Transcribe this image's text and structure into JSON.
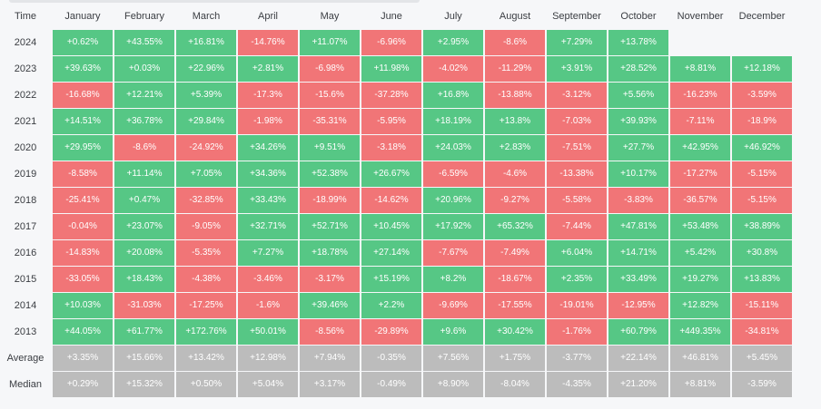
{
  "header": {
    "time_label": "Time",
    "months": [
      "January",
      "February",
      "March",
      "April",
      "May",
      "June",
      "July",
      "August",
      "September",
      "October",
      "November",
      "December"
    ]
  },
  "colors": {
    "positive": "#56c785",
    "negative": "#f17577",
    "summary": "#bcbcbc"
  },
  "rows": [
    {
      "label": "2024",
      "values": [
        "+0.62%",
        "+43.55%",
        "+16.81%",
        "-14.76%",
        "+11.07%",
        "-6.96%",
        "+2.95%",
        "-8.6%",
        "+7.29%",
        "+13.78%",
        "",
        ""
      ]
    },
    {
      "label": "2023",
      "values": [
        "+39.63%",
        "+0.03%",
        "+22.96%",
        "+2.81%",
        "-6.98%",
        "+11.98%",
        "-4.02%",
        "-11.29%",
        "+3.91%",
        "+28.52%",
        "+8.81%",
        "+12.18%"
      ]
    },
    {
      "label": "2022",
      "values": [
        "-16.68%",
        "+12.21%",
        "+5.39%",
        "-17.3%",
        "-15.6%",
        "-37.28%",
        "+16.8%",
        "-13.88%",
        "-3.12%",
        "+5.56%",
        "-16.23%",
        "-3.59%"
      ]
    },
    {
      "label": "2021",
      "values": [
        "+14.51%",
        "+36.78%",
        "+29.84%",
        "-1.98%",
        "-35.31%",
        "-5.95%",
        "+18.19%",
        "+13.8%",
        "-7.03%",
        "+39.93%",
        "-7.11%",
        "-18.9%"
      ]
    },
    {
      "label": "2020",
      "values": [
        "+29.95%",
        "-8.6%",
        "-24.92%",
        "+34.26%",
        "+9.51%",
        "-3.18%",
        "+24.03%",
        "+2.83%",
        "-7.51%",
        "+27.7%",
        "+42.95%",
        "+46.92%"
      ]
    },
    {
      "label": "2019",
      "values": [
        "-8.58%",
        "+11.14%",
        "+7.05%",
        "+34.36%",
        "+52.38%",
        "+26.67%",
        "-6.59%",
        "-4.6%",
        "-13.38%",
        "+10.17%",
        "-17.27%",
        "-5.15%"
      ]
    },
    {
      "label": "2018",
      "values": [
        "-25.41%",
        "+0.47%",
        "-32.85%",
        "+33.43%",
        "-18.99%",
        "-14.62%",
        "+20.96%",
        "-9.27%",
        "-5.58%",
        "-3.83%",
        "-36.57%",
        "-5.15%"
      ]
    },
    {
      "label": "2017",
      "values": [
        "-0.04%",
        "+23.07%",
        "-9.05%",
        "+32.71%",
        "+52.71%",
        "+10.45%",
        "+17.92%",
        "+65.32%",
        "-7.44%",
        "+47.81%",
        "+53.48%",
        "+38.89%"
      ]
    },
    {
      "label": "2016",
      "values": [
        "-14.83%",
        "+20.08%",
        "-5.35%",
        "+7.27%",
        "+18.78%",
        "+27.14%",
        "-7.67%",
        "-7.49%",
        "+6.04%",
        "+14.71%",
        "+5.42%",
        "+30.8%"
      ]
    },
    {
      "label": "2015",
      "values": [
        "-33.05%",
        "+18.43%",
        "-4.38%",
        "-3.46%",
        "-3.17%",
        "+15.19%",
        "+8.2%",
        "-18.67%",
        "+2.35%",
        "+33.49%",
        "+19.27%",
        "+13.83%"
      ]
    },
    {
      "label": "2014",
      "values": [
        "+10.03%",
        "-31.03%",
        "-17.25%",
        "-1.6%",
        "+39.46%",
        "+2.2%",
        "-9.69%",
        "-17.55%",
        "-19.01%",
        "-12.95%",
        "+12.82%",
        "-15.11%"
      ]
    },
    {
      "label": "2013",
      "values": [
        "+44.05%",
        "+61.77%",
        "+172.76%",
        "+50.01%",
        "-8.56%",
        "-29.89%",
        "+9.6%",
        "+30.42%",
        "-1.76%",
        "+60.79%",
        "+449.35%",
        "-34.81%"
      ]
    }
  ],
  "summary": [
    {
      "label": "Average",
      "values": [
        "+3.35%",
        "+15.66%",
        "+13.42%",
        "+12.98%",
        "+7.94%",
        "-0.35%",
        "+7.56%",
        "+1.75%",
        "-3.77%",
        "+22.14%",
        "+46.81%",
        "+5.45%"
      ]
    },
    {
      "label": "Median",
      "values": [
        "+0.29%",
        "+15.32%",
        "+0.50%",
        "+5.04%",
        "+3.17%",
        "-0.49%",
        "+8.90%",
        "-8.04%",
        "-4.35%",
        "+21.20%",
        "+8.81%",
        "-3.59%"
      ]
    }
  ]
}
